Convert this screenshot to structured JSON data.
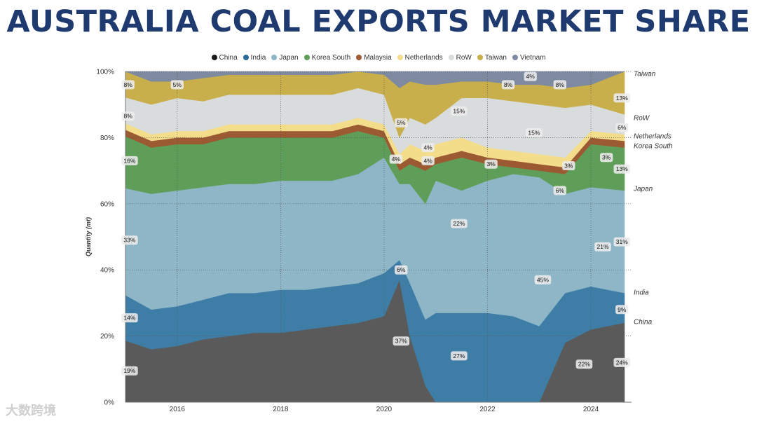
{
  "title": "AUSTRALIA COAL EXPORTS MARKET SHARE",
  "watermark": "大数跨境",
  "chart_data": {
    "type": "area",
    "stacked": true,
    "normalized": true,
    "ylabel": "Quantity (mt)",
    "ylim": [
      0,
      100
    ],
    "xlim": [
      2015.0,
      2024.65
    ],
    "x_ticks": [
      2016,
      2018,
      2020,
      2022,
      2024
    ],
    "y_ticks": [
      0,
      20,
      40,
      60,
      80,
      100
    ],
    "y_tick_labels": [
      "0%",
      "20%",
      "40%",
      "60%",
      "80%",
      "100%"
    ],
    "grid": "dotted",
    "legend_position": "top",
    "x": [
      2015.0,
      2015.5,
      2016.0,
      2016.5,
      2017.0,
      2017.5,
      2018.0,
      2018.5,
      2019.0,
      2019.5,
      2020.0,
      2020.3,
      2020.5,
      2020.8,
      2021.0,
      2021.5,
      2022.0,
      2022.5,
      2023.0,
      2023.5,
      2024.0,
      2024.65
    ],
    "series": [
      {
        "name": "China",
        "color": "#5a5a5a",
        "values": [
          19,
          16,
          17,
          19,
          20,
          21,
          21,
          22,
          23,
          24,
          26,
          37,
          20,
          5,
          0,
          0,
          0,
          0,
          0,
          18,
          22,
          24
        ]
      },
      {
        "name": "India",
        "color": "#3e7ea6",
        "values": [
          14,
          12,
          12,
          12,
          13,
          12,
          13,
          12,
          12,
          12,
          13,
          6,
          16,
          20,
          27,
          27,
          27,
          26,
          23,
          15,
          13,
          9
        ]
      },
      {
        "name": "Japan",
        "color": "#8fb6c6",
        "values": [
          33,
          35,
          35,
          34,
          33,
          33,
          33,
          33,
          32,
          33,
          35,
          23,
          30,
          35,
          40,
          37,
          40,
          43,
          45,
          30,
          30,
          31
        ]
      },
      {
        "name": "Korea South",
        "color": "#5f9e58",
        "values": [
          16,
          14,
          14,
          13,
          14,
          14,
          13,
          13,
          13,
          13,
          6,
          4,
          6,
          10,
          5,
          10,
          5,
          2,
          2,
          6,
          13,
          13
        ]
      },
      {
        "name": "Malaysia",
        "color": "#9c5a32",
        "values": [
          2,
          2,
          2,
          2,
          2,
          2,
          2,
          2,
          2,
          2,
          2,
          2,
          2,
          2,
          2,
          2,
          2,
          2,
          2,
          2,
          2,
          2
        ]
      },
      {
        "name": "Netherlands",
        "color": "#f3dc8a",
        "values": [
          2,
          2,
          2,
          2,
          2,
          2,
          2,
          2,
          2,
          2,
          2,
          3,
          4,
          4,
          4,
          4,
          3,
          3,
          3,
          3,
          2,
          2
        ]
      },
      {
        "name": "RoW",
        "color": "#d9dcdc",
        "values": [
          8,
          9,
          10,
          9,
          9,
          9,
          9,
          9,
          9,
          9,
          9,
          5,
          8,
          8,
          8,
          12,
          15,
          15,
          15,
          15,
          8,
          6
        ]
      },
      {
        "name": "Taiwan",
        "color": "#c8af4c",
        "values": [
          8,
          7,
          5,
          7,
          6,
          6,
          6,
          6,
          6,
          5,
          6,
          15,
          11,
          12,
          10,
          5,
          5,
          5,
          6,
          6,
          6,
          13
        ]
      },
      {
        "name": "Vietnam",
        "color": "#7d8aa0",
        "values": [
          0,
          3,
          3,
          2,
          1,
          1,
          1,
          1,
          1,
          0,
          1,
          5,
          3,
          4,
          4,
          3,
          3,
          4,
          4,
          5,
          4,
          0
        ]
      }
    ],
    "right_labels": [
      "Taiwan",
      "RoW",
      "Netherlands",
      "Korea South",
      "Japan",
      "India",
      "China"
    ],
    "data_labels": [
      {
        "x": 2015.08,
        "y": 9.5,
        "text": "19%"
      },
      {
        "x": 2015.08,
        "y": 25.5,
        "text": "14%"
      },
      {
        "x": 2015.08,
        "y": 49,
        "text": "33%"
      },
      {
        "x": 2015.08,
        "y": 73,
        "text": "16%"
      },
      {
        "x": 2015.05,
        "y": 86.5,
        "text": "8%"
      },
      {
        "x": 2015.05,
        "y": 96,
        "text": "8%"
      },
      {
        "x": 2016.0,
        "y": 96,
        "text": "5%"
      },
      {
        "x": 2020.33,
        "y": 18.5,
        "text": "37%"
      },
      {
        "x": 2020.33,
        "y": 40,
        "text": "6%"
      },
      {
        "x": 2020.23,
        "y": 73.5,
        "text": "4%"
      },
      {
        "x": 2020.33,
        "y": 84.5,
        "text": "5%"
      },
      {
        "x": 2020.85,
        "y": 73,
        "text": "4%"
      },
      {
        "x": 2020.85,
        "y": 77,
        "text": "4%"
      },
      {
        "x": 2021.45,
        "y": 88,
        "text": "15%"
      },
      {
        "x": 2021.45,
        "y": 54,
        "text": "22%"
      },
      {
        "x": 2021.45,
        "y": 14,
        "text": "27%"
      },
      {
        "x": 2022.07,
        "y": 72,
        "text": "3%"
      },
      {
        "x": 2022.4,
        "y": 96,
        "text": "8%"
      },
      {
        "x": 2022.83,
        "y": 98.5,
        "text": "4%"
      },
      {
        "x": 2022.9,
        "y": 81.5,
        "text": "15%"
      },
      {
        "x": 2023.07,
        "y": 37,
        "text": "45%"
      },
      {
        "x": 2023.4,
        "y": 64,
        "text": "6%"
      },
      {
        "x": 2023.57,
        "y": 71.5,
        "text": "3%"
      },
      {
        "x": 2023.4,
        "y": 96,
        "text": "8%"
      },
      {
        "x": 2023.87,
        "y": 11.5,
        "text": "22%"
      },
      {
        "x": 2024.23,
        "y": 47,
        "text": "21%"
      },
      {
        "x": 2024.3,
        "y": 74,
        "text": "3%"
      },
      {
        "x": 2024.6,
        "y": 12,
        "text": "24%"
      },
      {
        "x": 2024.6,
        "y": 28,
        "text": "9%"
      },
      {
        "x": 2024.6,
        "y": 48.5,
        "text": "31%"
      },
      {
        "x": 2024.6,
        "y": 70.5,
        "text": "13%"
      },
      {
        "x": 2024.6,
        "y": 83,
        "text": "6%"
      },
      {
        "x": 2024.6,
        "y": 92,
        "text": "13%"
      }
    ]
  }
}
